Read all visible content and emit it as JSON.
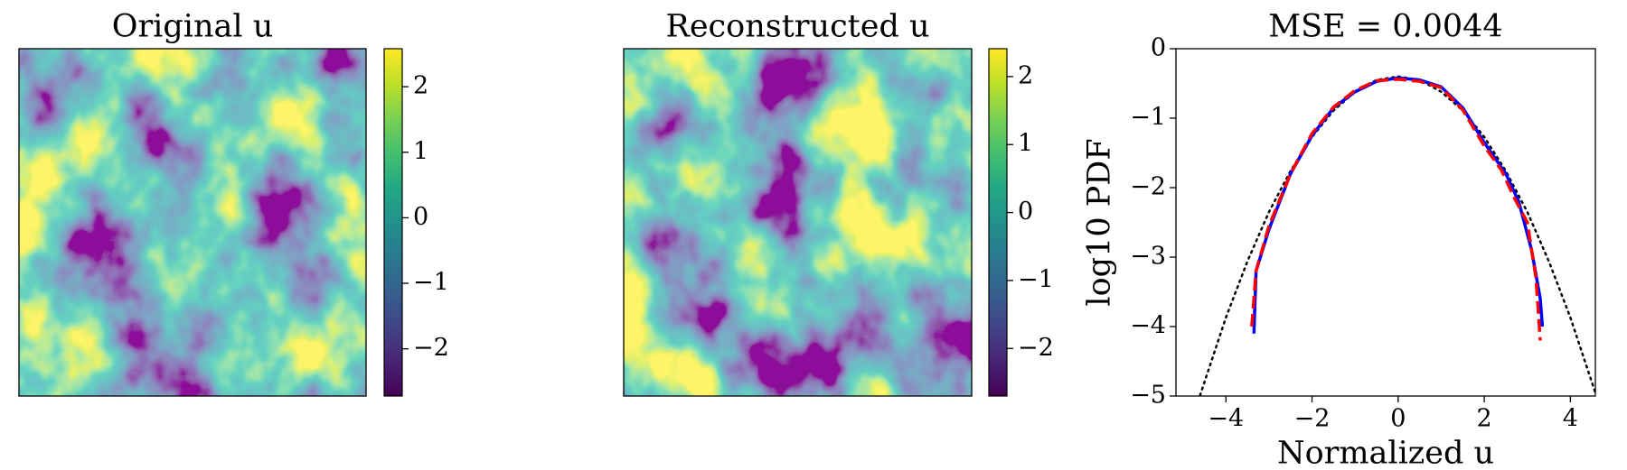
{
  "chart_data": [
    {
      "type": "heatmap",
      "title": "Original u",
      "colormap": "viridis",
      "clim": [
        -2.72,
        2.58
      ],
      "cticks": [
        2,
        1,
        0,
        {
          "value": -1,
          "label": "−1"
        },
        {
          "value": -2,
          "label": "−2"
        }
      ]
    },
    {
      "type": "heatmap",
      "title": "Reconstructed u",
      "colormap": "viridis",
      "clim": [
        -2.7,
        2.41
      ],
      "cticks": [
        2,
        1,
        0,
        {
          "value": -1,
          "label": "−1"
        },
        {
          "value": -2,
          "label": "−2"
        }
      ]
    },
    {
      "type": "line",
      "title": "MSE = 0.0044",
      "xlabel": "Normalized u",
      "ylabel": "log10 PDF",
      "xlim": [
        -5.16,
        4.58
      ],
      "ylim": [
        -5,
        0
      ],
      "xticks": [
        {
          "value": -4,
          "label": "−4"
        },
        {
          "value": -2,
          "label": "−2"
        },
        0,
        2,
        4
      ],
      "yticks": [
        0,
        {
          "value": -1,
          "label": "−1"
        },
        {
          "value": -2,
          "label": "−2"
        },
        {
          "value": -3,
          "label": "−3"
        },
        {
          "value": -4,
          "label": "−4"
        },
        {
          "value": -5,
          "label": "−5"
        }
      ],
      "series": [
        {
          "color": "#000000",
          "linestyle": "dotted",
          "x": [
            -4.6,
            -4,
            -3.5,
            -3,
            -2.5,
            -2,
            -1.5,
            -1,
            -0.5,
            0,
            0.5,
            1,
            1.5,
            2,
            2.5,
            3,
            3.5,
            4,
            4.6
          ],
          "values": [
            -4.99,
            -3.87,
            -3.06,
            -2.35,
            -1.76,
            -1.27,
            -0.89,
            -0.62,
            -0.45,
            -0.4,
            -0.45,
            -0.62,
            -0.89,
            -1.27,
            -1.76,
            -2.35,
            -3.06,
            -3.87,
            -4.99
          ]
        },
        {
          "color": "#0000ff",
          "linestyle": "solid",
          "x": [
            -3.35,
            -3.3,
            -3,
            -2.5,
            -2,
            -1.5,
            -1,
            -0.5,
            0,
            0.5,
            1,
            1.5,
            2,
            2.5,
            2.8,
            3.1,
            3.3,
            3.35
          ],
          "values": [
            -4.1,
            -3.2,
            -2.6,
            -1.8,
            -1.25,
            -0.85,
            -0.62,
            -0.47,
            -0.42,
            -0.45,
            -0.55,
            -0.85,
            -1.35,
            -1.8,
            -2.2,
            -2.9,
            -3.6,
            -4.0
          ]
        },
        {
          "color": "#ff0000",
          "linestyle": "dashed",
          "x": [
            -3.4,
            -3.35,
            -3.3,
            -3,
            -2.5,
            -2,
            -1.5,
            -1,
            -0.5,
            0,
            0.5,
            1,
            1.5,
            2,
            2.4,
            2.7,
            3,
            3.2,
            3.3
          ],
          "values": [
            -4.0,
            -3.6,
            -3.2,
            -2.55,
            -1.8,
            -1.22,
            -0.84,
            -0.6,
            -0.46,
            -0.44,
            -0.47,
            -0.56,
            -0.88,
            -1.4,
            -1.75,
            -2.15,
            -2.5,
            -3.3,
            -4.2
          ]
        }
      ]
    }
  ]
}
